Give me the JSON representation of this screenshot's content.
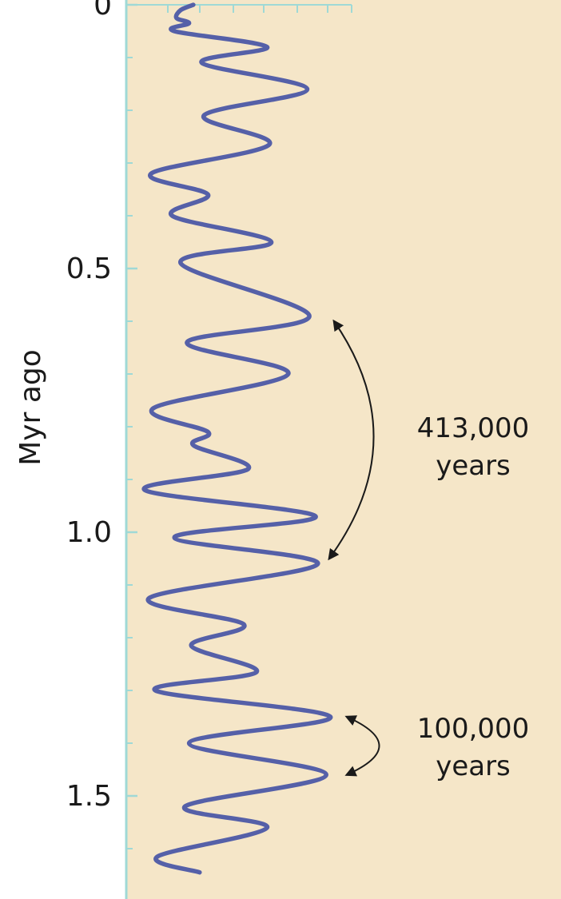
{
  "chart_data": {
    "type": "line",
    "ylabel": "Myr ago",
    "ylim": [
      0,
      1.62
    ],
    "y_inverted": true,
    "y_ticks": [
      {
        "value": 0,
        "label": "0"
      },
      {
        "value": 0.5,
        "label": "0.5"
      },
      {
        "value": 1.0,
        "label": "1.0"
      },
      {
        "value": 1.5,
        "label": "1.5"
      }
    ],
    "y_minor_step": 0.1,
    "x_range": [
      0,
      1
    ],
    "background_color": "#f5e6c8",
    "axis_color": "#9fd9d6",
    "line_color": "#5560a8",
    "series": [
      {
        "name": "",
        "points": [
          {
            "t": 0.0,
            "v": 0.28
          },
          {
            "t": 0.01,
            "v": 0.22
          },
          {
            "t": 0.025,
            "v": 0.2
          },
          {
            "t": 0.035,
            "v": 0.26
          },
          {
            "t": 0.05,
            "v": 0.19
          },
          {
            "t": 0.08,
            "v": 0.63
          },
          {
            "t": 0.11,
            "v": 0.32
          },
          {
            "t": 0.16,
            "v": 0.82
          },
          {
            "t": 0.21,
            "v": 0.33
          },
          {
            "t": 0.265,
            "v": 0.64
          },
          {
            "t": 0.32,
            "v": 0.08
          },
          {
            "t": 0.36,
            "v": 0.35
          },
          {
            "t": 0.4,
            "v": 0.18
          },
          {
            "t": 0.45,
            "v": 0.65
          },
          {
            "t": 0.49,
            "v": 0.22
          },
          {
            "t": 0.59,
            "v": 0.83
          },
          {
            "t": 0.64,
            "v": 0.25
          },
          {
            "t": 0.7,
            "v": 0.73
          },
          {
            "t": 0.765,
            "v": 0.09
          },
          {
            "t": 0.81,
            "v": 0.35
          },
          {
            "t": 0.835,
            "v": 0.28
          },
          {
            "t": 0.88,
            "v": 0.54
          },
          {
            "t": 0.92,
            "v": 0.05
          },
          {
            "t": 0.97,
            "v": 0.86
          },
          {
            "t": 1.01,
            "v": 0.19
          },
          {
            "t": 1.06,
            "v": 0.87
          },
          {
            "t": 1.125,
            "v": 0.07
          },
          {
            "t": 1.175,
            "v": 0.52
          },
          {
            "t": 1.215,
            "v": 0.27
          },
          {
            "t": 1.265,
            "v": 0.58
          },
          {
            "t": 1.3,
            "v": 0.1
          },
          {
            "t": 1.35,
            "v": 0.93
          },
          {
            "t": 1.4,
            "v": 0.26
          },
          {
            "t": 1.46,
            "v": 0.91
          },
          {
            "t": 1.52,
            "v": 0.24
          },
          {
            "t": 1.56,
            "v": 0.63
          },
          {
            "t": 1.615,
            "v": 0.11
          },
          {
            "t": 1.645,
            "v": 0.31
          }
        ]
      }
    ],
    "annotations": [
      {
        "text_line1": "413,000",
        "text_line2": "years",
        "t_start": 0.6,
        "t_end": 1.05
      },
      {
        "text_line1": "100,000",
        "text_line2": "years",
        "t_start": 1.35,
        "t_end": 1.46
      }
    ]
  }
}
